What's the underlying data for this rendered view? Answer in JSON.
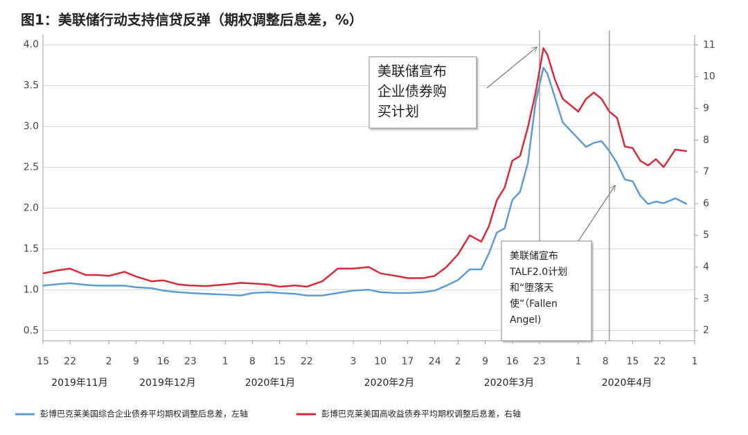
{
  "chart_data": {
    "type": "line",
    "title": "图1：美联储行动支持信贷反弹（期权调整后息差，%）",
    "x": [
      0,
      4,
      7,
      11,
      14,
      17,
      21,
      24,
      28,
      31,
      35,
      38,
      42,
      47,
      51,
      54,
      58,
      61,
      65,
      68,
      72,
      76,
      80,
      84,
      87,
      91,
      94,
      98,
      101,
      104,
      107,
      110,
      113,
      115,
      117,
      119,
      121,
      123,
      125,
      127,
      129,
      130,
      132,
      134,
      136,
      138,
      140,
      142,
      144,
      146,
      148,
      150,
      152,
      154,
      156,
      158,
      160,
      163,
      166
    ],
    "xlim": [
      0,
      168
    ],
    "xticks": [
      {
        "value": 0,
        "label": "15"
      },
      {
        "value": 7,
        "label": "22"
      },
      {
        "value": 17,
        "label": "2"
      },
      {
        "value": 24,
        "label": "9"
      },
      {
        "value": 31,
        "label": "16"
      },
      {
        "value": 38,
        "label": "23"
      },
      {
        "value": 47,
        "label": "1"
      },
      {
        "value": 54,
        "label": "8"
      },
      {
        "value": 61,
        "label": "15"
      },
      {
        "value": 68,
        "label": "22"
      },
      {
        "value": 80,
        "label": "3"
      },
      {
        "value": 87,
        "label": "10"
      },
      {
        "value": 94,
        "label": "17"
      },
      {
        "value": 101,
        "label": "24"
      },
      {
        "value": 107,
        "label": "2"
      },
      {
        "value": 114,
        "label": "9"
      },
      {
        "value": 121,
        "label": "16"
      },
      {
        "value": 128,
        "label": "23"
      },
      {
        "value": 138,
        "label": "1"
      },
      {
        "value": 145,
        "label": "8"
      },
      {
        "value": 152,
        "label": "15"
      },
      {
        "value": 159,
        "label": "22"
      },
      {
        "value": 168,
        "label": "1"
      }
    ],
    "x_groups": [
      "2019年11月",
      "2019年12月",
      "2020年1月",
      "2020年2月",
      "2020年3月",
      "2020年4月"
    ],
    "ylim": [
      0.375,
      4.125
    ],
    "yticks": [
      0.5,
      {
        "value": 1,
        "label": "1.0"
      },
      1.5,
      {
        "value": 2,
        "label": "2.0"
      },
      2.5,
      {
        "value": 3,
        "label": "3.0"
      },
      3.5,
      {
        "value": 4,
        "label": "4.0"
      }
    ],
    "y2lim": [
      1.675,
      11.325
    ],
    "y2ticks": [
      2,
      3,
      4,
      5,
      6,
      7,
      8,
      9,
      10,
      11
    ],
    "grid": true,
    "series": [
      {
        "name": "彭博巴克莱美国综合企业债券平均期权调整后息差，左轴",
        "color": "#5b9bd5",
        "axis": "y",
        "values": [
          1.05,
          1.07,
          1.08,
          1.06,
          1.05,
          1.05,
          1.05,
          1.03,
          1.02,
          0.99,
          0.97,
          0.96,
          0.95,
          0.94,
          0.93,
          0.96,
          0.97,
          0.96,
          0.95,
          0.93,
          0.93,
          0.96,
          0.99,
          1.0,
          0.97,
          0.96,
          0.96,
          0.97,
          0.99,
          1.05,
          1.12,
          1.25,
          1.25,
          1.45,
          1.7,
          1.75,
          2.1,
          2.2,
          2.55,
          3.3,
          3.72,
          3.65,
          3.35,
          3.05,
          2.95,
          2.85,
          2.75,
          2.8,
          2.82,
          2.7,
          2.55,
          2.35,
          2.33,
          2.15,
          2.05,
          2.08,
          2.06,
          2.12,
          2.05
        ]
      },
      {
        "name": "彭博巴克莱美国高收益债券平均期权调整后息差，右轴",
        "color": "#d62a3b",
        "axis": "y2",
        "values": [
          3.8,
          3.9,
          3.95,
          3.75,
          3.75,
          3.72,
          3.85,
          3.7,
          3.55,
          3.58,
          3.45,
          3.42,
          3.4,
          3.45,
          3.5,
          3.48,
          3.45,
          3.38,
          3.42,
          3.38,
          3.55,
          3.95,
          3.95,
          4.0,
          3.8,
          3.72,
          3.65,
          3.65,
          3.72,
          4.0,
          4.4,
          5.0,
          4.8,
          5.3,
          6.1,
          6.5,
          7.35,
          7.5,
          8.4,
          9.5,
          10.9,
          10.7,
          9.9,
          9.3,
          9.1,
          8.9,
          9.3,
          9.5,
          9.3,
          8.9,
          8.7,
          7.8,
          7.75,
          7.35,
          7.2,
          7.4,
          7.15,
          7.7,
          7.65
        ]
      }
    ],
    "events": [
      128,
      146
    ],
    "annotations": [
      {
        "lines": [
          "美联储宣布",
          "企业债券购",
          "买计划"
        ]
      },
      {
        "lines": [
          "美联储宣布",
          "TALF2.0计划",
          "和“堕落天",
          "使”（Fallen",
          "Angel)"
        ]
      }
    ],
    "legend": "bottom"
  }
}
